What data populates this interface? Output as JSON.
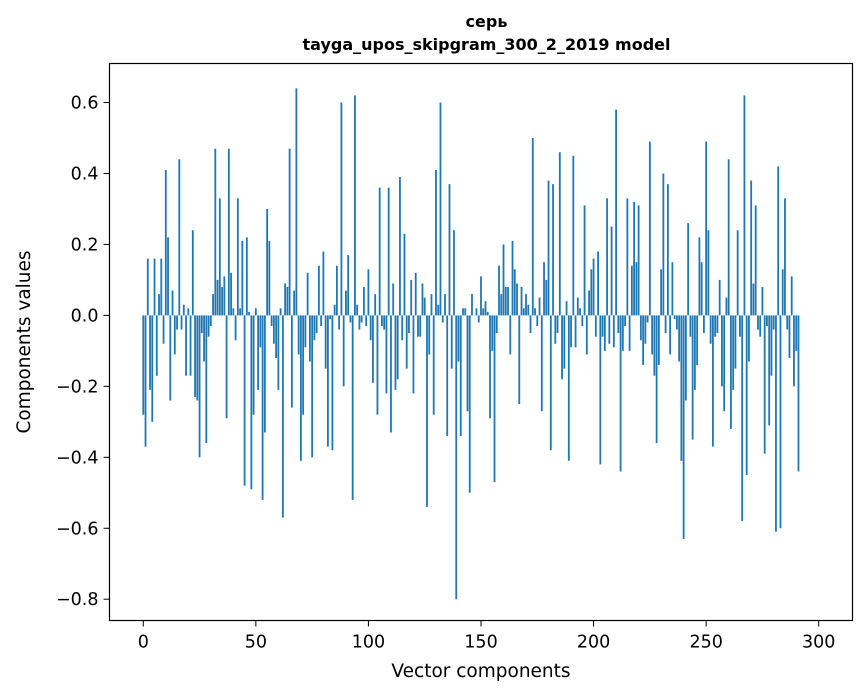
{
  "chart_data": {
    "type": "bar",
    "title": "серь",
    "subtitle": "tayga_upos_skipgram_300_2_2019 model",
    "xlabel": "Vector components",
    "ylabel": "Components values",
    "xlim": [
      -15,
      315
    ],
    "ylim": [
      -0.86,
      0.71
    ],
    "xticks": [
      0,
      50,
      100,
      150,
      200,
      250,
      300
    ],
    "yticks": [
      -0.8,
      -0.6,
      -0.4,
      -0.2,
      0.0,
      0.2,
      0.4,
      0.6
    ],
    "ytick_labels": [
      "−0.8",
      "−0.6",
      "−0.4",
      "−0.2",
      "0.0",
      "0.2",
      "0.4",
      "0.6"
    ],
    "bar_color": "#1f77b4",
    "grid": false,
    "values": [
      -0.28,
      -0.37,
      0.16,
      -0.21,
      -0.3,
      0.16,
      -0.17,
      0.06,
      0.16,
      -0.08,
      0.41,
      0.22,
      -0.24,
      0.07,
      -0.11,
      -0.04,
      0.44,
      -0.04,
      0.03,
      -0.17,
      0.02,
      -0.17,
      0.24,
      -0.23,
      -0.24,
      -0.4,
      -0.05,
      -0.13,
      -0.36,
      -0.06,
      -0.03,
      0.06,
      0.47,
      0.1,
      0.33,
      0.08,
      0.11,
      -0.29,
      0.47,
      0.12,
      0.02,
      -0.07,
      0.33,
      0.02,
      0.21,
      -0.48,
      0.22,
      0.01,
      -0.49,
      -0.28,
      0.02,
      -0.21,
      -0.09,
      -0.52,
      -0.33,
      0.3,
      0.21,
      -0.03,
      -0.08,
      -0.12,
      -0.21,
      0.02,
      -0.57,
      0.09,
      0.08,
      0.47,
      -0.26,
      0.07,
      0.64,
      -0.11,
      -0.41,
      -0.28,
      -0.09,
      0.12,
      -0.13,
      -0.4,
      -0.07,
      -0.05,
      0.14,
      -0.03,
      0.18,
      -0.15,
      -0.37,
      -0.01,
      -0.38,
      0.03,
      0.14,
      -0.04,
      0.6,
      -0.2,
      0.07,
      0.17,
      -0.02,
      -0.52,
      0.62,
      0.03,
      -0.04,
      -0.02,
      0.08,
      -0.03,
      0.13,
      -0.07,
      -0.19,
      0.06,
      -0.28,
      0.36,
      -0.03,
      -0.04,
      -0.22,
      0.36,
      -0.33,
      0.09,
      -0.21,
      -0.18,
      0.39,
      -0.07,
      0.23,
      -0.15,
      -0.05,
      0.1,
      -0.22,
      0.12,
      -0.06,
      -0.06,
      0.09,
      0.05,
      -0.54,
      -0.11,
      0.06,
      -0.28,
      0.41,
      0.03,
      0.6,
      -0.02,
      0.06,
      -0.34,
      0.37,
      -0.15,
      0.24,
      -0.8,
      -0.13,
      -0.34,
      0.02,
      0.02,
      -0.27,
      -0.5,
      0.06,
      0.0,
      0.02,
      -0.02,
      0.11,
      0.02,
      0.04,
      0.01,
      -0.29,
      -0.1,
      -0.47,
      -0.05,
      0.14,
      0.06,
      0.2,
      0.08,
      0.08,
      -0.11,
      0.21,
      0.13,
      0.09,
      -0.25,
      0.08,
      0.02,
      0.06,
      0.03,
      -0.05,
      0.5,
      0.02,
      -0.03,
      0.05,
      -0.27,
      0.15,
      0.1,
      0.38,
      -0.38,
      0.37,
      -0.08,
      -0.05,
      0.46,
      -0.18,
      -0.15,
      0.04,
      -0.41,
      -0.09,
      0.45,
      -0.09,
      0.05,
      0.02,
      -0.03,
      0.31,
      -0.11,
      0.07,
      0.13,
      0.16,
      -0.06,
      0.18,
      -0.42,
      -0.06,
      -0.1,
      0.33,
      -0.08,
      0.25,
      -0.09,
      0.58,
      -0.05,
      -0.44,
      -0.1,
      -0.03,
      0.33,
      -0.1,
      0.14,
      0.32,
      0.15,
      0.31,
      -0.07,
      -0.14,
      -0.08,
      -0.02,
      0.49,
      -0.11,
      -0.17,
      -0.36,
      -0.14,
      0.13,
      0.4,
      -0.05,
      0.37,
      -0.11,
      0.15,
      -0.01,
      -0.04,
      -0.13,
      -0.41,
      -0.63,
      -0.24,
      0.26,
      -0.06,
      -0.35,
      -0.21,
      -0.14,
      0.22,
      0.15,
      -0.05,
      0.49,
      0.24,
      -0.08,
      -0.37,
      -0.06,
      -0.05,
      0.1,
      -0.2,
      -0.27,
      0.05,
      0.44,
      -0.32,
      -0.21,
      -0.15,
      0.24,
      -0.06,
      -0.58,
      0.62,
      -0.45,
      -0.13,
      0.38,
      0.09,
      0.31,
      -0.04,
      -0.06,
      0.08,
      -0.39,
      -0.03,
      -0.31,
      -0.17,
      -0.04,
      -0.61,
      0.42,
      -0.6,
      0.13,
      0.33,
      -0.04,
      -0.12,
      0.11,
      -0.2,
      -0.1,
      -0.44
    ]
  }
}
